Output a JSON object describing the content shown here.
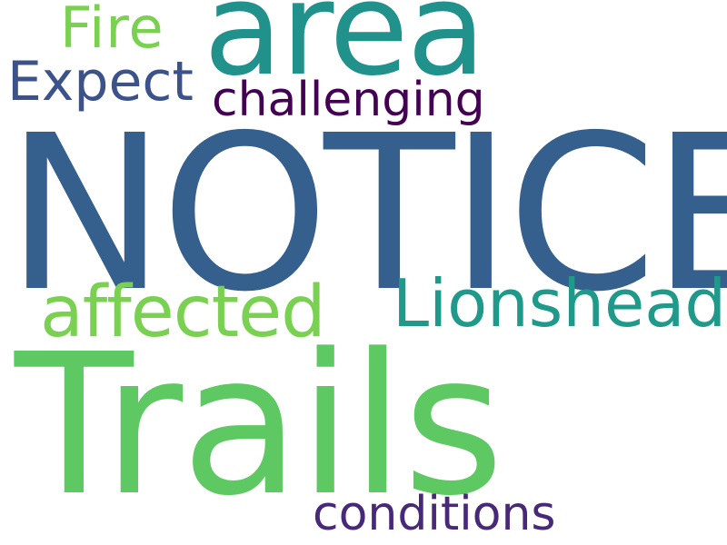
{
  "word_cloud": {
    "words": {
      "notice": {
        "text": "NOTICE",
        "color": "#355F8D"
      },
      "trails": {
        "text": "Trails",
        "color": "#5EC962"
      },
      "area": {
        "text": "area",
        "color": "#21918C"
      },
      "lionshead": {
        "text": "Lionshead",
        "color": "#1F9A8A"
      },
      "affected": {
        "text": "affected",
        "color": "#7AD151"
      },
      "expect": {
        "text": "Expect",
        "color": "#3B528B"
      },
      "fire": {
        "text": "Fire",
        "color": "#7AD151"
      },
      "challenging": {
        "text": "challenging",
        "color": "#440154"
      },
      "conditions": {
        "text": "conditions",
        "color": "#482878"
      }
    }
  }
}
